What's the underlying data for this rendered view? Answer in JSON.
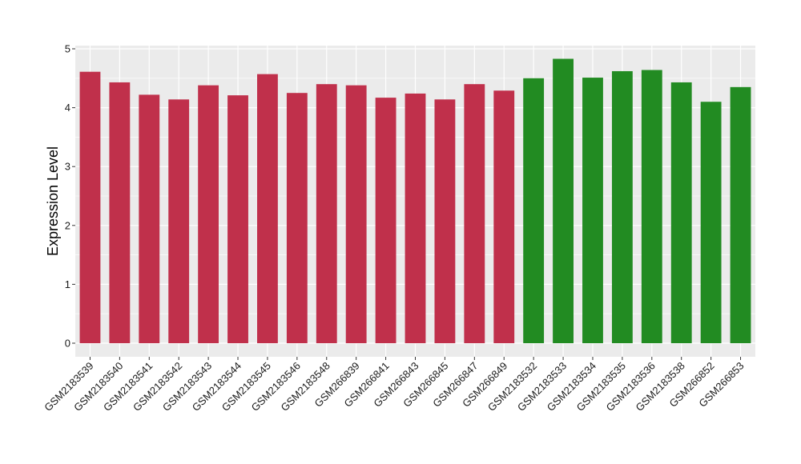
{
  "chart_data": {
    "type": "bar",
    "title": "",
    "xlabel": "",
    "ylabel": "Expression Level",
    "ylim": [
      0,
      5
    ],
    "yticks": [
      0,
      1,
      2,
      3,
      4,
      5
    ],
    "grid": true,
    "legend": "none",
    "categories": [
      "GSM2183539",
      "GSM2183540",
      "GSM2183541",
      "GSM2183542",
      "GSM2183543",
      "GSM2183544",
      "GSM2183545",
      "GSM2183546",
      "GSM2183548",
      "GSM266839",
      "GSM266841",
      "GSM266843",
      "GSM266845",
      "GSM266847",
      "GSM266849",
      "GSM2183532",
      "GSM2183533",
      "GSM2183534",
      "GSM2183535",
      "GSM2183536",
      "GSM2183538",
      "GSM266852",
      "GSM266853"
    ],
    "values": [
      4.61,
      4.43,
      4.22,
      4.14,
      4.38,
      4.21,
      4.57,
      4.25,
      4.4,
      4.38,
      4.17,
      4.24,
      4.14,
      4.4,
      4.29,
      4.5,
      4.83,
      4.51,
      4.62,
      4.64,
      4.43,
      4.1,
      4.35
    ],
    "colors": [
      "#C0304B",
      "#C0304B",
      "#C0304B",
      "#C0304B",
      "#C0304B",
      "#C0304B",
      "#C0304B",
      "#C0304B",
      "#C0304B",
      "#C0304B",
      "#C0304B",
      "#C0304B",
      "#C0304B",
      "#C0304B",
      "#C0304B",
      "#228B22",
      "#228B22",
      "#228B22",
      "#228B22",
      "#228B22",
      "#228B22",
      "#228B22",
      "#228B22"
    ],
    "panel_background": "#EBEBEB",
    "gridline_color": "#FFFFFF"
  }
}
